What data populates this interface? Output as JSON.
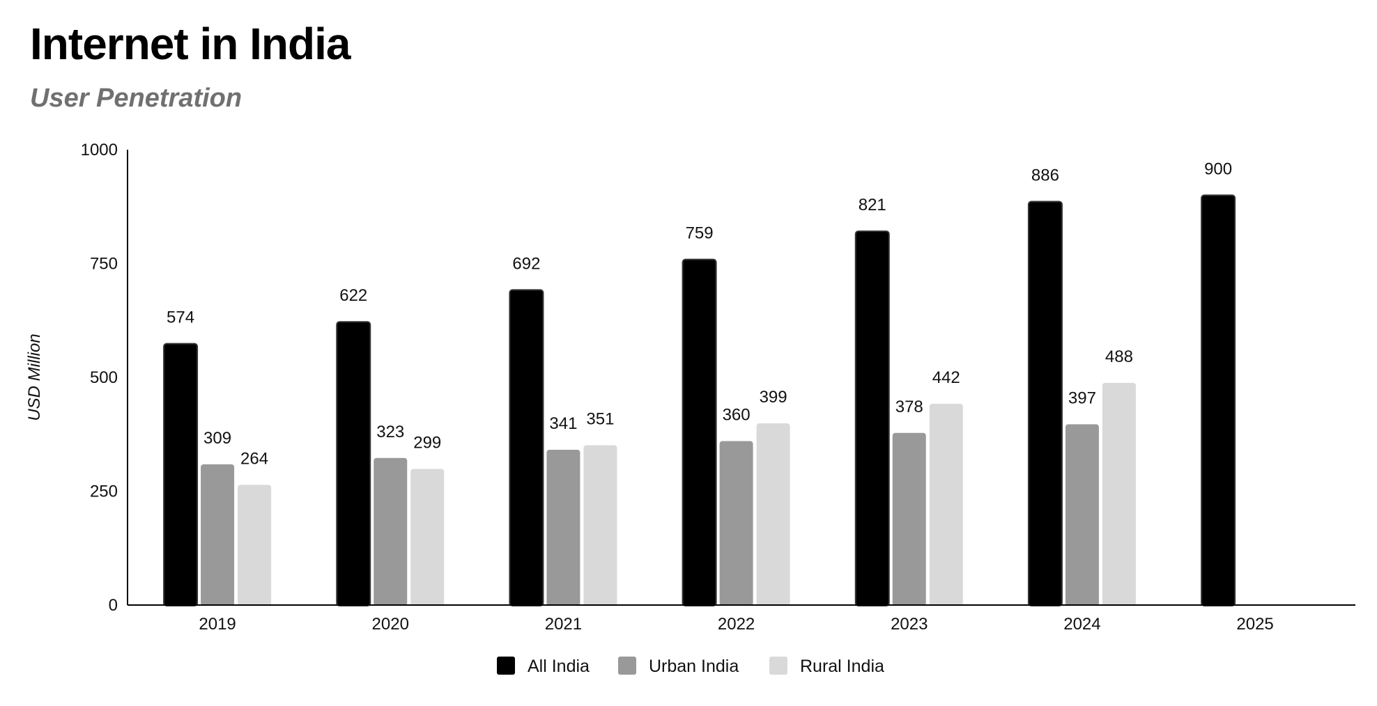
{
  "title": "Internet in India",
  "subtitle": "User Penetration",
  "colors": {
    "all_india": "#000000",
    "urban_india": "#999999",
    "rural_india": "#d9d9d9",
    "axis": "#000000",
    "text": "#111111",
    "subtitle": "#707070"
  },
  "chart_data": {
    "type": "bar",
    "title": "Internet in India",
    "subtitle": "User Penetration",
    "xlabel": "",
    "ylabel": "USD Million",
    "categories": [
      "2019",
      "2020",
      "2021",
      "2022",
      "2023",
      "2024",
      "2025"
    ],
    "series": [
      {
        "name": "All India",
        "color": "#000000",
        "values": [
          574,
          622,
          692,
          759,
          821,
          886,
          900
        ]
      },
      {
        "name": "Urban India",
        "color": "#999999",
        "values": [
          309,
          323,
          341,
          360,
          378,
          397,
          null
        ]
      },
      {
        "name": "Rural India",
        "color": "#d9d9d9",
        "values": [
          264,
          299,
          351,
          399,
          442,
          488,
          null
        ]
      }
    ],
    "ylim": [
      0,
      1000
    ],
    "yticks": [
      0,
      250,
      500,
      750,
      1000
    ],
    "grid": false,
    "data_labels": true,
    "legend_position": "bottom-center"
  }
}
